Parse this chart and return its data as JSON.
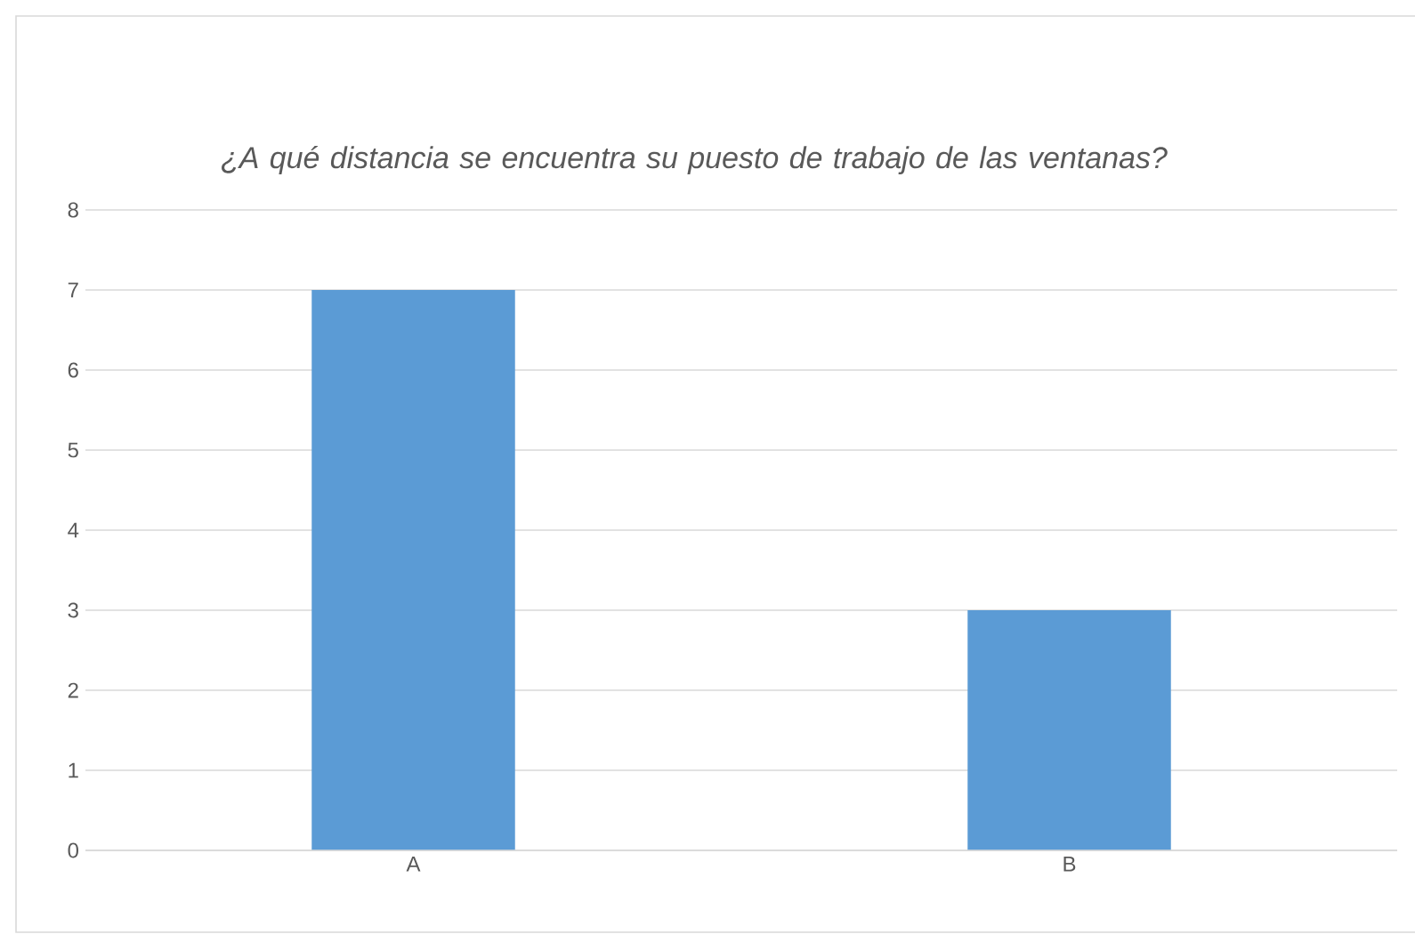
{
  "chart_data": {
    "type": "bar",
    "title": "¿A qué distancia se encuentra su puesto de trabajo de las ventanas?",
    "categories": [
      "A",
      "B"
    ],
    "values": [
      7,
      3
    ],
    "color": "#5b9bd5",
    "ylim": [
      0,
      8
    ],
    "yticks": [
      0,
      1,
      2,
      3,
      4,
      5,
      6,
      7,
      8
    ],
    "grid": "y"
  }
}
